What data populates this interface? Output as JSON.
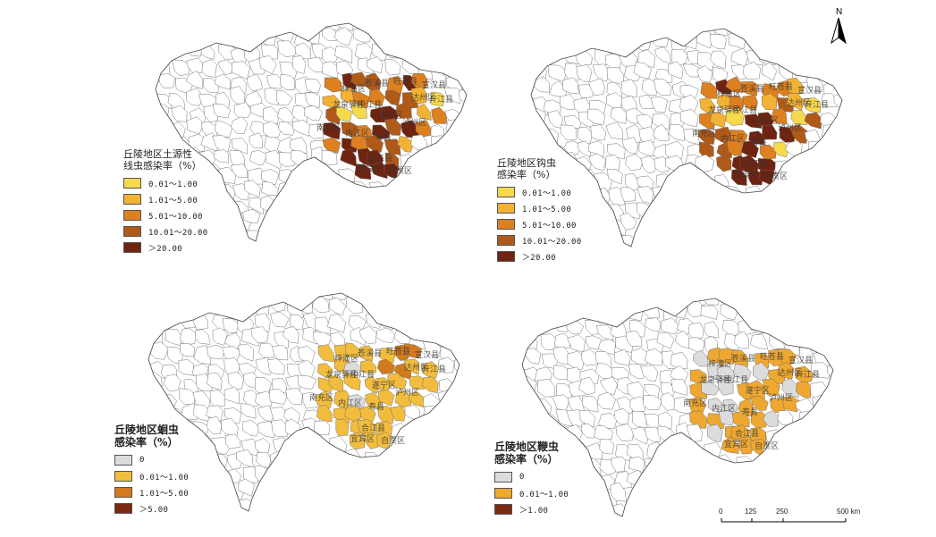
{
  "north": {
    "label": "N"
  },
  "scale": {
    "ticks": [
      "0",
      "125",
      "250",
      "500 km"
    ]
  },
  "panels": [
    {
      "title": "丘陵地区土源性\n线虫感染率（%）",
      "big_title": false,
      "legend": [
        {
          "label": "0.01～1.00",
          "color": "#f7d94c"
        },
        {
          "label": "1.01～5.00",
          "color": "#f2b233"
        },
        {
          "label": "5.01～10.00",
          "color": "#dd8020"
        },
        {
          "label": "10.01～20.00",
          "color": "#b05a1a"
        },
        {
          "label": "＞20.00",
          "color": "#6e2410"
        }
      ],
      "labels": [
        "梓潼区",
        "苍溪县",
        "旺苍县",
        "宣汉县",
        "开江县",
        "达州区",
        "龙泉驿区",
        "南充区",
        "中江县",
        "遂宁区",
        "内江区",
        "寿县",
        "泸州区",
        "合江县",
        "自贡区",
        "宜宾区"
      ]
    },
    {
      "title": "丘陵地区钩虫\n感染率（%）",
      "big_title": false,
      "legend": [
        {
          "label": "0.01～1.00",
          "color": "#f7d94c"
        },
        {
          "label": "1.01～5.00",
          "color": "#f2b233"
        },
        {
          "label": "5.01～10.00",
          "color": "#dd8020"
        },
        {
          "label": "10.01～20.00",
          "color": "#b05a1a"
        },
        {
          "label": "＞20.00",
          "color": "#6e2410"
        }
      ],
      "labels": [
        "梓潼区",
        "苍溪县",
        "旺苍县",
        "宣汉县",
        "开江县",
        "达州区",
        "龙泉驿区",
        "南充区",
        "中江县",
        "遂宁区",
        "内江区",
        "寿县",
        "泸州区",
        "合江县",
        "自贡区",
        "宜宾区"
      ]
    },
    {
      "title": "丘陵地区蛔虫\n感染率（%）",
      "big_title": true,
      "legend": [
        {
          "label": "0",
          "color": "#dcdcdc"
        },
        {
          "label": "0.01～1.00",
          "color": "#f2bd3d"
        },
        {
          "label": "1.01～5.00",
          "color": "#d27a1c"
        },
        {
          "label": "＞5.00",
          "color": "#7a2a10"
        }
      ],
      "labels": [
        "梓潼区",
        "苍溪县",
        "旺苍县",
        "宣汉县",
        "开江县",
        "达州区",
        "龙泉驿区",
        "南充区",
        "中江县",
        "遂宁区",
        "内江区",
        "寿县",
        "泸州区",
        "合江县",
        "自贡区",
        "宜宾区"
      ]
    },
    {
      "title": "丘陵地区鞭虫\n感染率（%）",
      "big_title": true,
      "legend": [
        {
          "label": "0",
          "color": "#dcdcdc"
        },
        {
          "label": "0.01～1.00",
          "color": "#eea831"
        },
        {
          "label": "＞1.00",
          "color": "#7a2a10"
        }
      ],
      "labels": [
        "梓潼区",
        "苍溪县",
        "旺苍县",
        "宣汉县",
        "开江县",
        "达州区",
        "龙泉驿区",
        "南充区",
        "中江县",
        "遂宁区",
        "内江区",
        "寿县",
        "泸州区",
        "合江县",
        "自贡区",
        "宜宾区"
      ]
    }
  ]
}
